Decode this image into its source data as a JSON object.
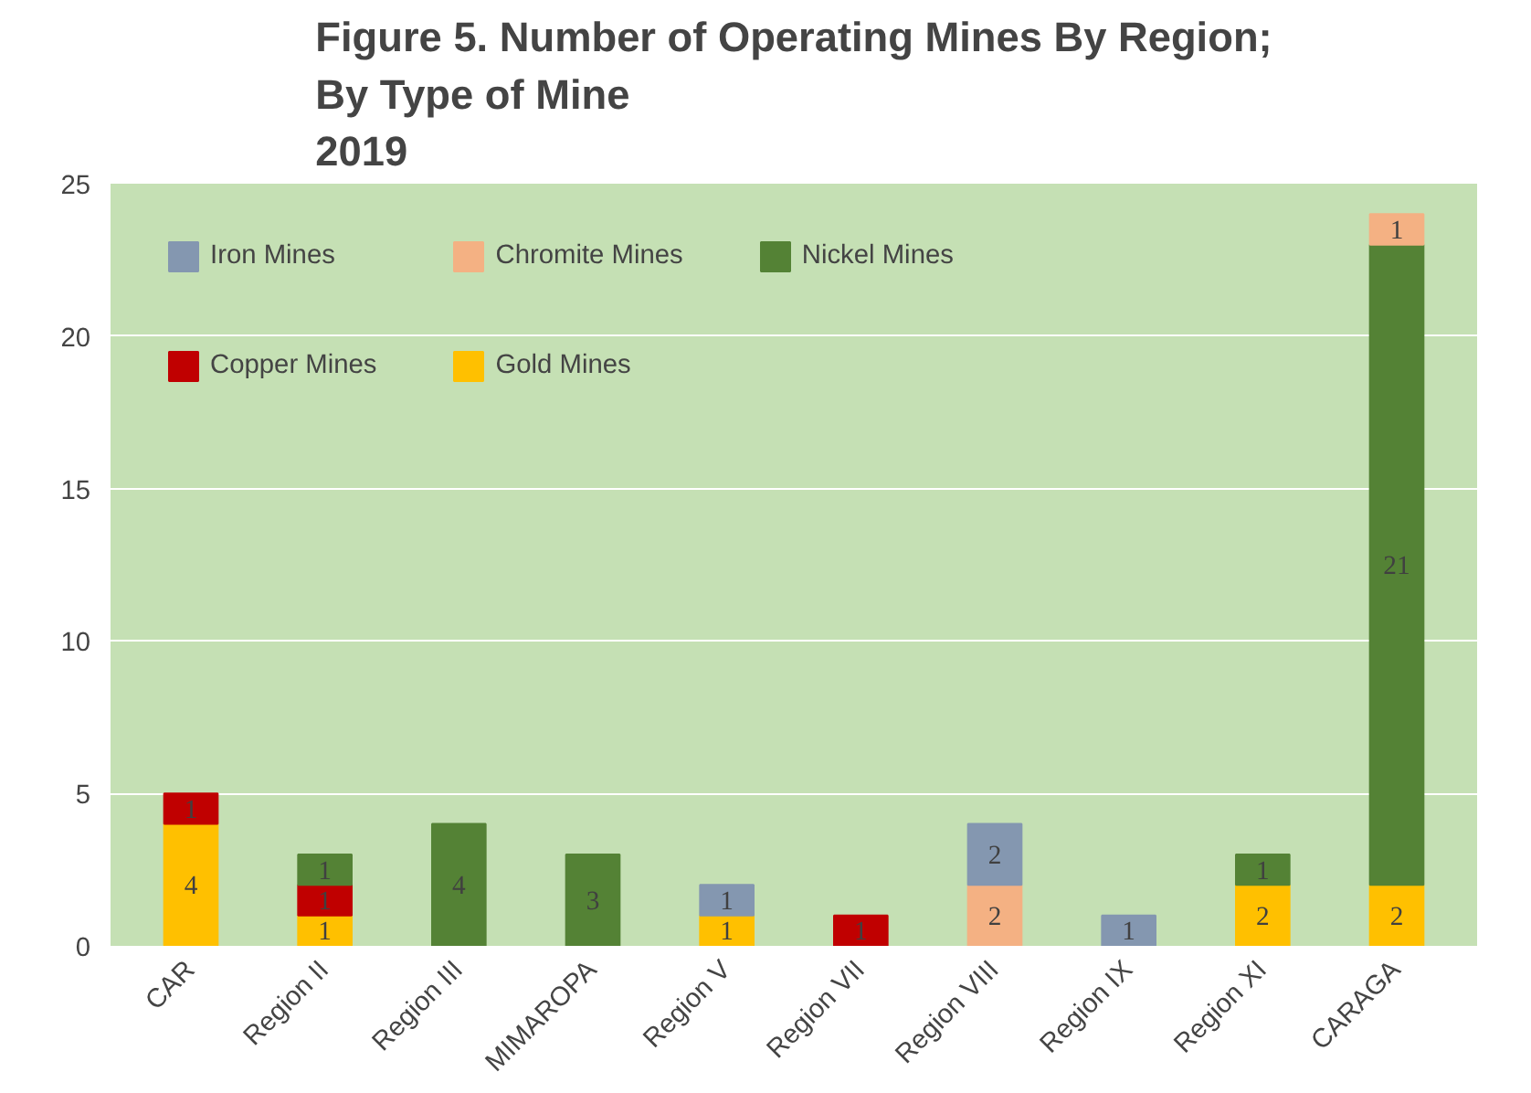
{
  "chart_data": {
    "type": "bar",
    "stacked": true,
    "title": "Figure 5. Number of Operating Mines By Region;\nBy Type of Mine\n2019",
    "categories": [
      "CAR",
      "Region II",
      "Region III",
      "MIMAROPA",
      "Region V",
      "Region VII",
      "Region VIII",
      "Region IX",
      "Region XI",
      "CARAGA"
    ],
    "series": [
      {
        "name": "Gold Mines",
        "color": "#ffc000",
        "values": [
          4,
          1,
          null,
          null,
          1,
          null,
          null,
          null,
          2,
          2
        ]
      },
      {
        "name": "Copper Mines",
        "color": "#c00000",
        "values": [
          1,
          1,
          null,
          null,
          null,
          1,
          null,
          null,
          null,
          null
        ]
      },
      {
        "name": "Nickel Mines",
        "color": "#548235",
        "values": [
          null,
          1,
          4,
          3,
          null,
          null,
          null,
          null,
          1,
          21
        ]
      },
      {
        "name": "Chromite Mines",
        "color": "#f4b183",
        "values": [
          null,
          null,
          null,
          null,
          null,
          null,
          2,
          null,
          null,
          1
        ]
      },
      {
        "name": "Iron Mines",
        "color": "#8497b0",
        "values": [
          null,
          null,
          null,
          null,
          1,
          null,
          2,
          1,
          null,
          null
        ]
      }
    ],
    "ylim": [
      0,
      25
    ],
    "yticks": [
      0,
      5,
      10,
      15,
      20,
      25
    ],
    "grid": "y",
    "legend": "top left",
    "data_labels": true
  }
}
